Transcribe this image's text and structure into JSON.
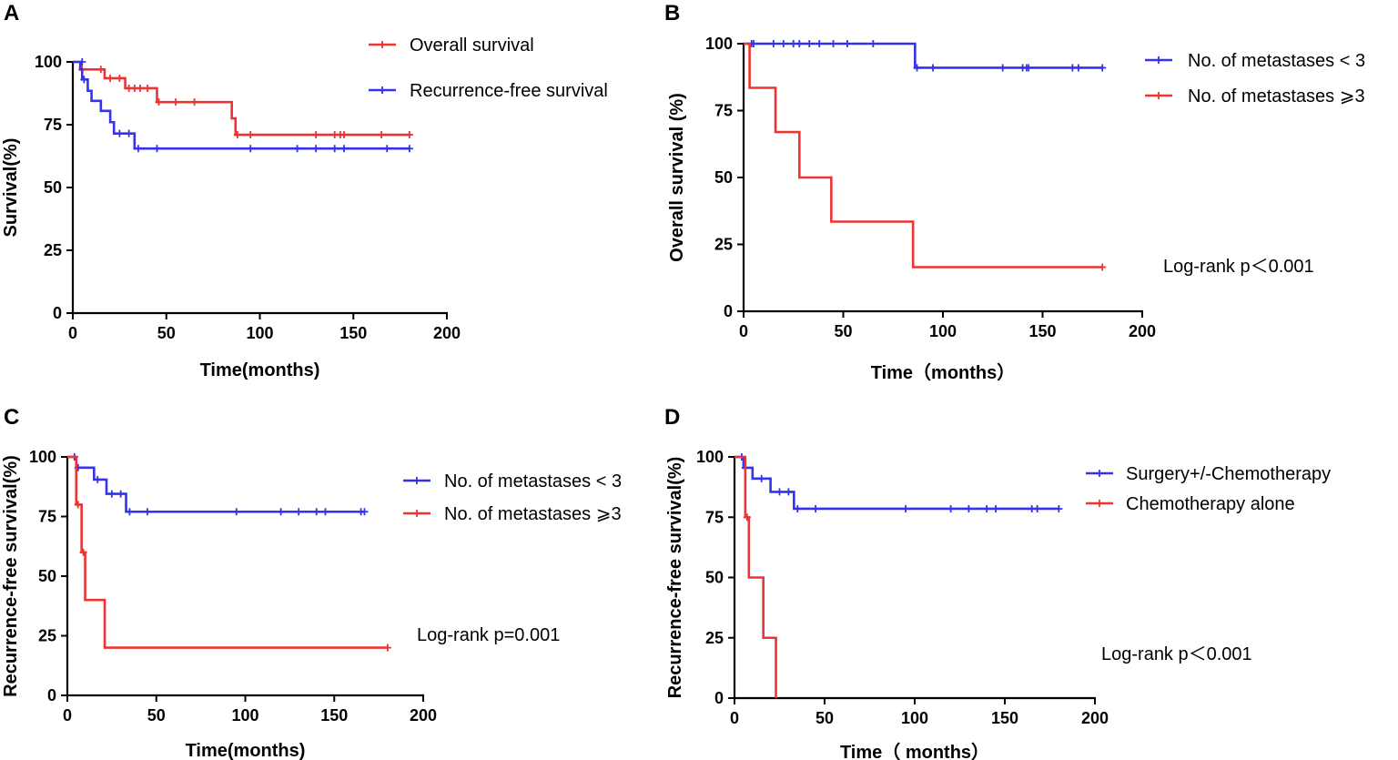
{
  "chart_data": [
    {
      "id": "A",
      "type": "line",
      "panel_label": "A",
      "xlabel": "Time(months)",
      "ylabel": "Survival(%)",
      "xlim": [
        0,
        200
      ],
      "ylim": [
        0,
        100
      ],
      "xticks": [
        "0",
        "50",
        "100",
        "150",
        "200"
      ],
      "yticks": [
        "0",
        "25",
        "50",
        "75",
        "100"
      ],
      "annotation": "",
      "series": [
        {
          "name": "Overall survival",
          "color": "#ee3333",
          "steps": [
            [
              0,
              100
            ],
            [
              4,
              97
            ],
            [
              17,
              93.5
            ],
            [
              28,
              89.5
            ],
            [
              45,
              84
            ],
            [
              85,
              77.5
            ],
            [
              87,
              71
            ],
            [
              180,
              71
            ]
          ],
          "censored": [
            [
              5,
              97
            ],
            [
              15,
              97
            ],
            [
              20,
              93.5
            ],
            [
              25,
              93.5
            ],
            [
              30,
              89.5
            ],
            [
              33,
              89.5
            ],
            [
              36,
              89.5
            ],
            [
              40,
              89.5
            ],
            [
              46,
              84
            ],
            [
              55,
              84
            ],
            [
              65,
              84
            ],
            [
              88,
              71
            ],
            [
              95,
              71
            ],
            [
              130,
              71
            ],
            [
              140,
              71
            ],
            [
              143,
              71
            ],
            [
              145,
              71
            ],
            [
              165,
              71
            ],
            [
              180,
              71
            ]
          ]
        },
        {
          "name": "Recurrence-free survival",
          "color": "#3333ee",
          "steps": [
            [
              0,
              100
            ],
            [
              4,
              97
            ],
            [
              5,
              93
            ],
            [
              8,
              88.5
            ],
            [
              10,
              84.5
            ],
            [
              15,
              80.5
            ],
            [
              20,
              76
            ],
            [
              22,
              71.5
            ],
            [
              33,
              65.5
            ],
            [
              180,
              65.5
            ]
          ],
          "censored": [
            [
              5,
              100
            ],
            [
              6,
              93
            ],
            [
              25,
              71.5
            ],
            [
              30,
              71.5
            ],
            [
              35,
              65.5
            ],
            [
              45,
              65.5
            ],
            [
              95,
              65.5
            ],
            [
              120,
              65.5
            ],
            [
              130,
              65.5
            ],
            [
              140,
              65.5
            ],
            [
              145,
              65.5
            ],
            [
              168,
              65.5
            ],
            [
              180,
              65.5
            ]
          ]
        }
      ]
    },
    {
      "id": "B",
      "type": "line",
      "panel_label": "B",
      "xlabel": "Time（months）",
      "ylabel": "Overall survival (%)",
      "xlim": [
        0,
        200
      ],
      "ylim": [
        0,
        100
      ],
      "xticks": [
        "0",
        "50",
        "100",
        "150",
        "200"
      ],
      "yticks": [
        "0",
        "25",
        "50",
        "75",
        "100"
      ],
      "annotation": "Log-rank p＜0.001",
      "series": [
        {
          "name": "No. of metastases < 3",
          "color": "#3333ee",
          "steps": [
            [
              0,
              100
            ],
            [
              86,
              91
            ],
            [
              180,
              91
            ]
          ],
          "censored": [
            [
              4,
              100
            ],
            [
              5,
              100
            ],
            [
              15,
              100
            ],
            [
              20,
              100
            ],
            [
              25,
              100
            ],
            [
              28,
              100
            ],
            [
              33,
              100
            ],
            [
              38,
              100
            ],
            [
              45,
              100
            ],
            [
              52,
              100
            ],
            [
              65,
              100
            ],
            [
              87,
              91
            ],
            [
              95,
              91
            ],
            [
              130,
              91
            ],
            [
              140,
              91
            ],
            [
              142,
              91
            ],
            [
              143,
              91
            ],
            [
              165,
              91
            ],
            [
              168,
              91
            ],
            [
              180,
              91
            ]
          ]
        },
        {
          "name": "No. of metastases ⩾3",
          "color": "#ee3333",
          "steps": [
            [
              0,
              100
            ],
            [
              3,
              83.5
            ],
            [
              16,
              67
            ],
            [
              28,
              50
            ],
            [
              44,
              33.5
            ],
            [
              85,
              16.5
            ],
            [
              180,
              16.5
            ]
          ],
          "censored": [
            [
              180,
              16.5
            ]
          ]
        }
      ]
    },
    {
      "id": "C",
      "type": "line",
      "panel_label": "C",
      "xlabel": "Time(months)",
      "ylabel": "Recurrence-free survival(%)",
      "xlim": [
        0,
        200
      ],
      "ylim": [
        0,
        100
      ],
      "xticks": [
        "0",
        "50",
        "100",
        "150",
        "200"
      ],
      "yticks": [
        "0",
        "25",
        "50",
        "75",
        "100"
      ],
      "annotation": "Log-rank p=0.001",
      "series": [
        {
          "name": "No. of metastases < 3",
          "color": "#3333ee",
          "steps": [
            [
              0,
              100
            ],
            [
              5,
              95.5
            ],
            [
              15,
              90.5
            ],
            [
              22,
              84.5
            ],
            [
              33,
              77
            ],
            [
              167,
              77
            ]
          ],
          "censored": [
            [
              4,
              100
            ],
            [
              6,
              95.5
            ],
            [
              17,
              90.5
            ],
            [
              25,
              84.5
            ],
            [
              30,
              84.5
            ],
            [
              35,
              77
            ],
            [
              45,
              77
            ],
            [
              95,
              77
            ],
            [
              120,
              77
            ],
            [
              130,
              77
            ],
            [
              140,
              77
            ],
            [
              145,
              77
            ],
            [
              165,
              77
            ],
            [
              167,
              77
            ]
          ]
        },
        {
          "name": "No. of metastases ⩾3",
          "color": "#ee3333",
          "steps": [
            [
              0,
              100
            ],
            [
              5,
              80
            ],
            [
              8,
              60
            ],
            [
              10,
              40
            ],
            [
              21,
              20
            ],
            [
              180,
              20
            ]
          ],
          "censored": [
            [
              6,
              80
            ],
            [
              9,
              60
            ],
            [
              180,
              20
            ]
          ]
        }
      ]
    },
    {
      "id": "D",
      "type": "line",
      "panel_label": "D",
      "xlabel": "Time（ months）",
      "ylabel": "Recurrence-free survival(%)",
      "xlim": [
        0,
        200
      ],
      "ylim": [
        0,
        100
      ],
      "xticks": [
        "0",
        "50",
        "100",
        "150",
        "200"
      ],
      "yticks": [
        "0",
        "25",
        "50",
        "75",
        "100"
      ],
      "annotation": "Log-rank p＜0.001",
      "series": [
        {
          "name": "Surgery+/-Chemotherapy",
          "color": "#3333ee",
          "steps": [
            [
              0,
              100
            ],
            [
              5,
              95.5
            ],
            [
              10,
              91
            ],
            [
              20,
              85.5
            ],
            [
              33,
              78.5
            ],
            [
              180,
              78.5
            ]
          ],
          "censored": [
            [
              4,
              100
            ],
            [
              6,
              95.5
            ],
            [
              15,
              91
            ],
            [
              25,
              85.5
            ],
            [
              30,
              85.5
            ],
            [
              35,
              78.5
            ],
            [
              45,
              78.5
            ],
            [
              95,
              78.5
            ],
            [
              120,
              78.5
            ],
            [
              130,
              78.5
            ],
            [
              140,
              78.5
            ],
            [
              145,
              78.5
            ],
            [
              165,
              78.5
            ],
            [
              168,
              78.5
            ],
            [
              180,
              78.5
            ]
          ]
        },
        {
          "name": "Chemotherapy alone",
          "color": "#ee3333",
          "steps": [
            [
              0,
              100
            ],
            [
              6,
              75
            ],
            [
              8,
              50
            ],
            [
              16,
              25
            ],
            [
              23,
              0
            ]
          ],
          "censored": [
            [
              7,
              75
            ]
          ]
        }
      ]
    }
  ]
}
